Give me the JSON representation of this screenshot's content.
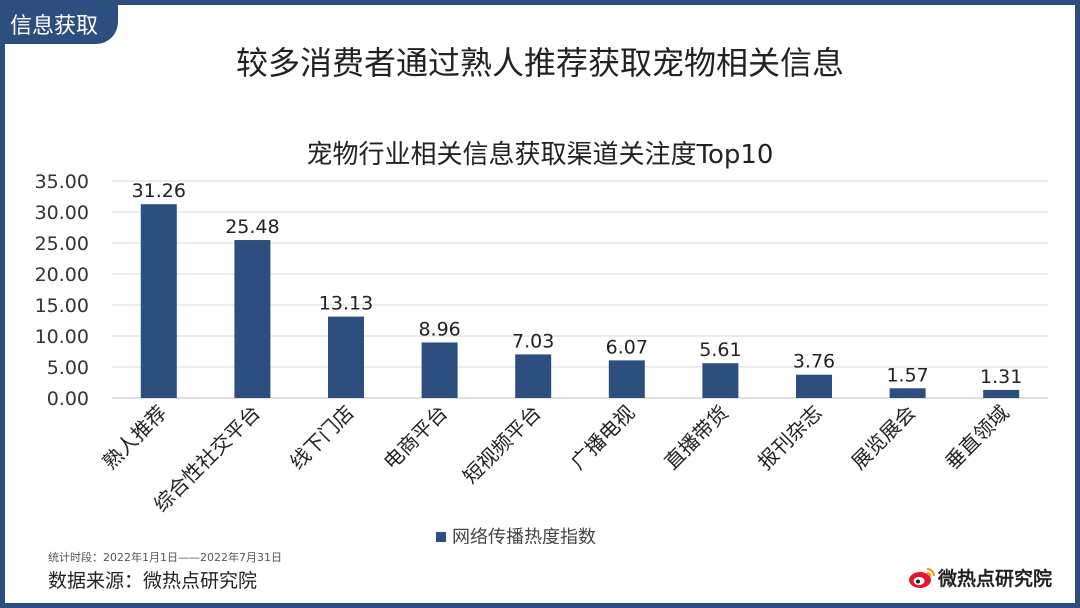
{
  "corner_tag": "信息获取",
  "main_title": "较多消费者通过熟人推荐获取宠物相关信息",
  "colors": {
    "frame": "#2d4f7f",
    "bar": "#2d4f7f",
    "grid": "#d9d9d9",
    "logo_red": "#e6162d"
  },
  "chart_data": {
    "type": "bar",
    "title": "宠物行业相关信息获取渠道关注度Top10",
    "categories": [
      "熟人推荐",
      "综合性社交平台",
      "线下门店",
      "电商平台",
      "短视频平台",
      "广播电视",
      "直播带货",
      "报刊杂志",
      "展览展会",
      "垂直领域"
    ],
    "series": [
      {
        "name": "网络传播热度指数",
        "values": [
          31.26,
          25.48,
          13.13,
          8.96,
          7.03,
          6.07,
          5.61,
          3.76,
          1.57,
          1.31
        ]
      }
    ],
    "data_labels": [
      "31.26",
      "25.48",
      "13.13",
      "8.96",
      "7.03",
      "6.07",
      "5.61",
      "3.76",
      "1.57",
      "1.31"
    ],
    "ylim": [
      0,
      35
    ],
    "yticks": [
      "0.00",
      "5.00",
      "10.00",
      "15.00",
      "20.00",
      "25.00",
      "30.00",
      "35.00"
    ],
    "xlabel": "",
    "ylabel": "",
    "grid": true,
    "legend_position": "bottom"
  },
  "footer": {
    "period": "统计时段：2022年1月1日——2022年7月31日",
    "source": "数据来源：微热点研究院",
    "brand_name": "微热点研究院",
    "brand_logo_icon": "weibo-eye-logo-icon"
  }
}
